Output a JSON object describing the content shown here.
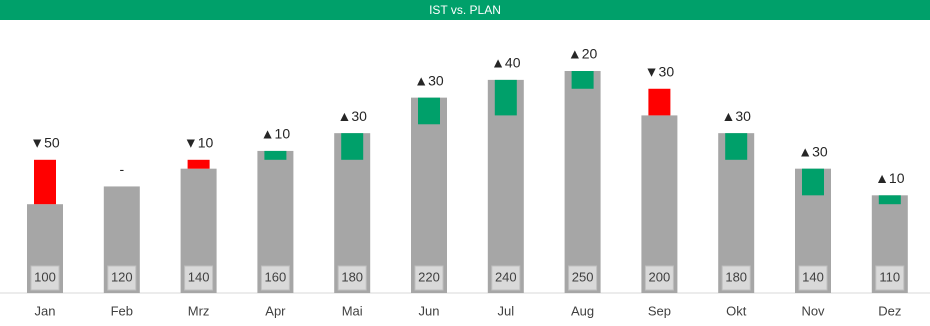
{
  "chart_data": {
    "type": "variance-bar",
    "title": "IST vs. PLAN",
    "categories": [
      "Jan",
      "Feb",
      "Mrz",
      "Apr",
      "Mai",
      "Jun",
      "Jul",
      "Aug",
      "Sep",
      "Okt",
      "Nov",
      "Dez"
    ],
    "series": [
      {
        "color": "#a6a6a6",
        "values": [
          100,
          120,
          140,
          160,
          180,
          220,
          240,
          250,
          200,
          180,
          140,
          110
        ]
      },
      {
        "positive_color": "#00a06a",
        "negative_color": "#ff0000",
        "values": [
          -50,
          0,
          -10,
          10,
          30,
          30,
          40,
          20,
          -30,
          30,
          30,
          10
        ],
        "value_labels": [
          "▼50",
          "-",
          "▼10",
          "▲10",
          "▲30",
          "▲30",
          "▲40",
          "▲20",
          "▼30",
          "▲30",
          "▲30",
          "▲10"
        ]
      }
    ]
  }
}
